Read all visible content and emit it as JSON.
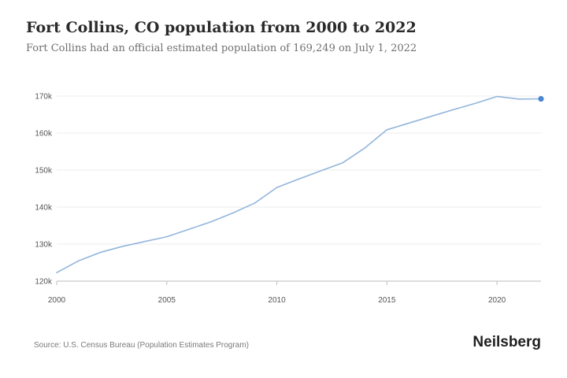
{
  "header": {
    "title": "Fort Collins, CO population from 2000 to 2022",
    "subtitle": "Fort Collins had an official estimated population of 169,249 on July 1, 2022"
  },
  "footer": {
    "source": "Source: U.S. Census Bureau (Population Estimates Program)",
    "brand": "Neilsberg"
  },
  "colors": {
    "line": "#93b5dc",
    "marker": "#4a86d2",
    "grid": "#eeeeee",
    "axis": "#bdbdbd"
  },
  "chart_data": {
    "type": "line",
    "title": "Fort Collins, CO population from 2000 to 2022",
    "xlabel": "",
    "ylabel": "",
    "xlim": [
      2000,
      2022
    ],
    "ylim": [
      120000,
      170000
    ],
    "grid": true,
    "x_ticks": [
      2000,
      2005,
      2010,
      2015,
      2020
    ],
    "x_tick_labels": [
      "2000",
      "2005",
      "2010",
      "2015",
      "2020"
    ],
    "y_ticks": [
      120000,
      130000,
      140000,
      150000,
      160000,
      170000
    ],
    "y_tick_labels": [
      "120k",
      "130k",
      "140k",
      "150k",
      "160k",
      "170k"
    ],
    "x": [
      2000,
      2001,
      2002,
      2003,
      2004,
      2005,
      2006,
      2007,
      2008,
      2009,
      2010,
      2011,
      2012,
      2013,
      2014,
      2015,
      2016,
      2017,
      2018,
      2019,
      2020,
      2021,
      2022
    ],
    "series": [
      {
        "values": [
          122300,
          125500,
          127800,
          129400,
          130700,
          132000,
          134000,
          136000,
          138400,
          141100,
          145300,
          147600,
          149800,
          152000,
          156000,
          160900,
          162700,
          164500,
          166300,
          168000,
          169900,
          169200,
          169249
        ]
      }
    ]
  }
}
